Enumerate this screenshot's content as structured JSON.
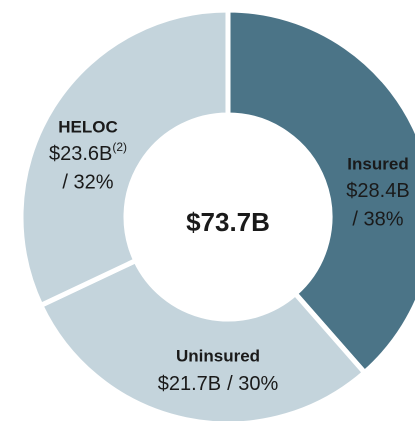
{
  "chart_data": {
    "type": "donut",
    "categories": [
      "Insured",
      "Uninsured",
      "HELOC"
    ],
    "values": [
      28.4,
      21.7,
      23.6
    ],
    "value_labels": [
      "$28.4B",
      "$21.7B",
      "$23.6B"
    ],
    "percents": [
      38,
      30,
      32
    ],
    "percent_labels": [
      "/ 38%",
      "/ 30%",
      "/ 32%"
    ],
    "notes": {
      "2": "(2)"
    },
    "colors": [
      "#4b7487",
      "#c4d4dc",
      "#c4d4dc"
    ],
    "total": 73.7,
    "total_label": "$73.7B"
  }
}
